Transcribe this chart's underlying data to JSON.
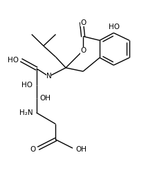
{
  "bg_color": "#ffffff",
  "figsize": [
    2.11,
    2.5
  ],
  "dpi": 100,
  "xlim": [
    0.0,
    1.0
  ],
  "ylim": [
    1.0,
    0.0
  ]
}
